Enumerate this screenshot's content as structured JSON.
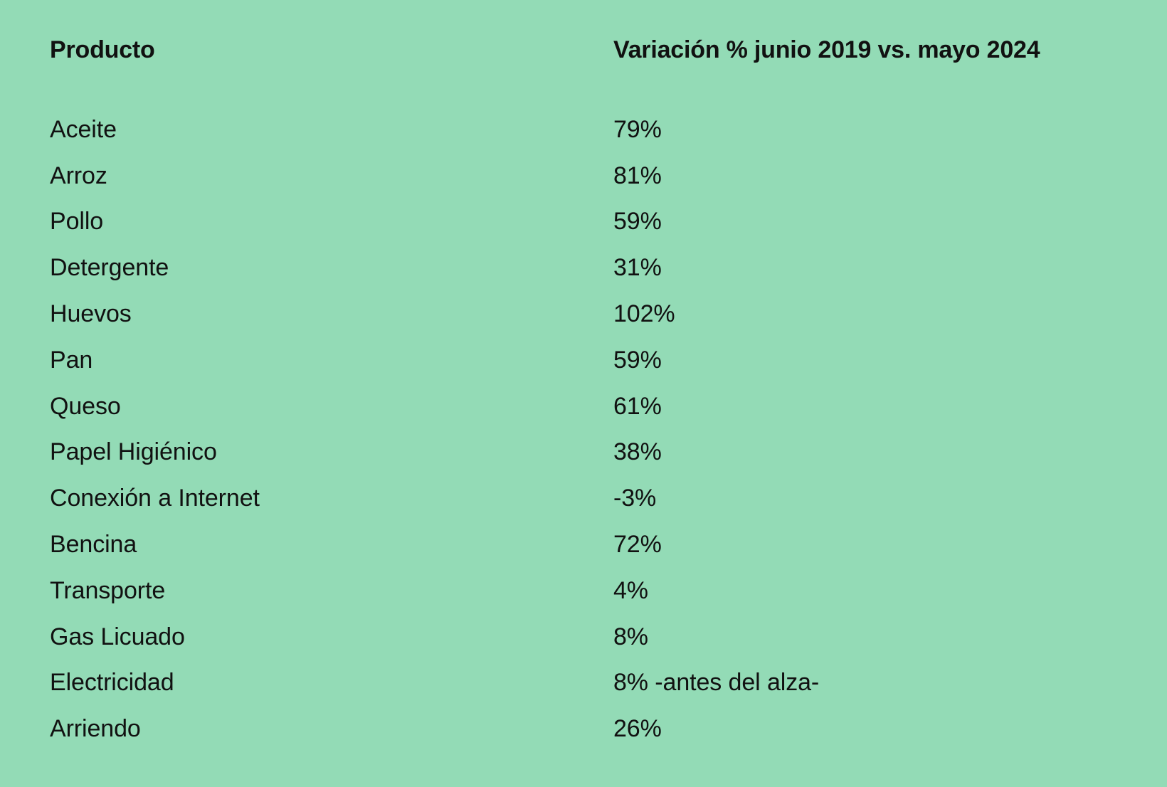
{
  "table": {
    "headers": {
      "product": "Producto",
      "variation": "Variación % junio 2019 vs. mayo 2024"
    },
    "rows": [
      {
        "product": "Aceite",
        "variation": "79%"
      },
      {
        "product": "Arroz",
        "variation": "81%"
      },
      {
        "product": "Pollo",
        "variation": "59%"
      },
      {
        "product": "Detergente",
        "variation": "31%"
      },
      {
        "product": "Huevos",
        "variation": "102%"
      },
      {
        "product": "Pan",
        "variation": "59%"
      },
      {
        "product": "Queso",
        "variation": "61%"
      },
      {
        "product": "Papel Higiénico",
        "variation": "38%"
      },
      {
        "product": "Conexión a Internet",
        "variation": "-3%"
      },
      {
        "product": "Bencina",
        "variation": "72%"
      },
      {
        "product": "Transporte",
        "variation": "4%"
      },
      {
        "product": "Gas Licuado",
        "variation": "8%"
      },
      {
        "product": "Electricidad",
        "variation": "8% -antes del alza-"
      },
      {
        "product": "Arriendo",
        "variation": "26%"
      }
    ]
  },
  "colors": {
    "background": "#93dbb6",
    "text": "#111111"
  }
}
